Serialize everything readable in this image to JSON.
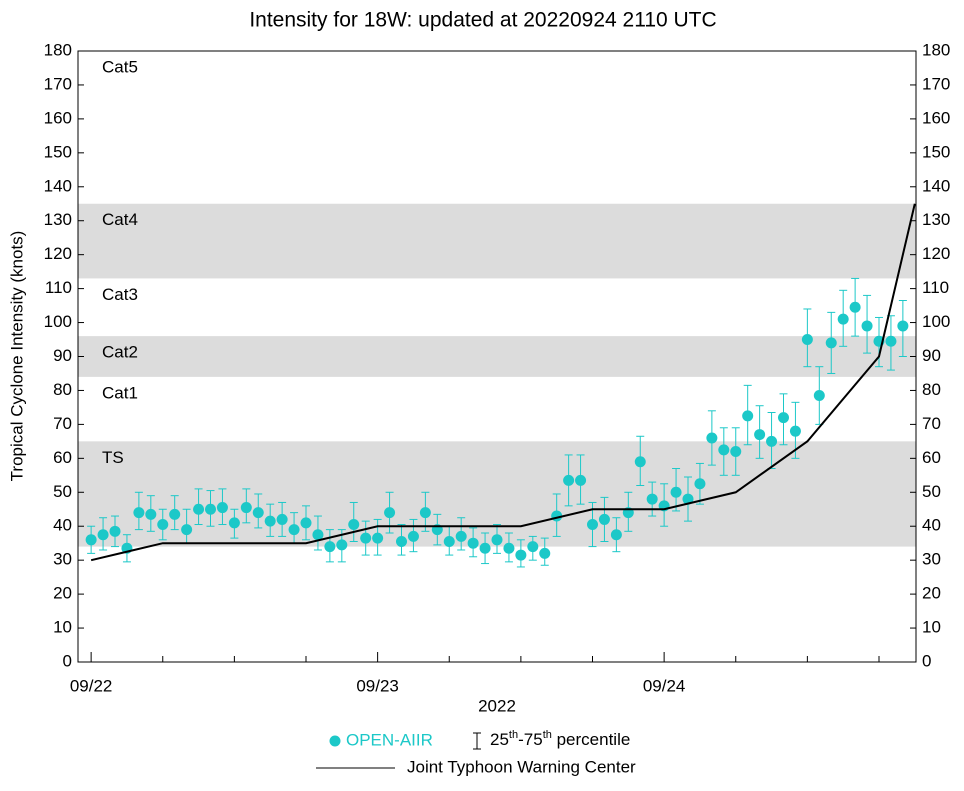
{
  "chart_data": {
    "type": "scatter",
    "title": "Intensity for 18W: updated at 20220924 2110 UTC",
    "y_label": "Tropical Cyclone Intensity (knots)",
    "x_label": "2022",
    "xlim": [
      -1.1,
      69.1
    ],
    "xticks": [
      {
        "value": 0,
        "label": "09/22"
      },
      {
        "value": 24,
        "label": "09/23"
      },
      {
        "value": 48,
        "label": "09/24"
      }
    ],
    "xminor_ticks": [
      6,
      12,
      18,
      30,
      36,
      42,
      54,
      60,
      66
    ],
    "ylim": [
      0,
      180
    ],
    "yticks": [
      0,
      10,
      20,
      30,
      40,
      50,
      60,
      70,
      80,
      90,
      100,
      110,
      120,
      130,
      140,
      150,
      160,
      170,
      180
    ],
    "bands": [
      {
        "label": "TS",
        "range": [
          34,
          65
        ],
        "shaded": true
      },
      {
        "label": "Cat1",
        "range": [
          65,
          84
        ],
        "shaded": false
      },
      {
        "label": "Cat2",
        "range": [
          84,
          96
        ],
        "shaded": true
      },
      {
        "label": "Cat3",
        "range": [
          96,
          113
        ],
        "shaded": false
      },
      {
        "label": "Cat4",
        "range": [
          113,
          135
        ],
        "shaded": true
      },
      {
        "label": "Cat5",
        "range": [
          135,
          180
        ],
        "shaded": false
      }
    ],
    "percentile_legend": {
      "parts": [
        "25",
        "th",
        "-75",
        "th",
        " percentile"
      ]
    },
    "series": [
      {
        "name": "OPEN-AIIR",
        "type": "scatter",
        "color": "#1cc8c8",
        "x": [
          0,
          1,
          2,
          3,
          4,
          5,
          6,
          7,
          8,
          9,
          10,
          11,
          12,
          13,
          14,
          15,
          16,
          17,
          18,
          19,
          20,
          21,
          22,
          23,
          24,
          25,
          26,
          27,
          28,
          29,
          30,
          31,
          32,
          33,
          34,
          35,
          36,
          37,
          38,
          39,
          40,
          41,
          42,
          43,
          44,
          45,
          46,
          47,
          48,
          49,
          50,
          51,
          52,
          53,
          54,
          55,
          56,
          57,
          58,
          59,
          60,
          61,
          62,
          63,
          64,
          65,
          66,
          67,
          68
        ],
        "values": [
          36,
          37.5,
          38.5,
          33.5,
          44,
          43.5,
          40.5,
          43.5,
          39,
          45,
          45,
          45.5,
          41,
          45.5,
          44,
          41.5,
          42,
          39,
          41,
          37.5,
          34,
          34.5,
          40.5,
          36.5,
          36.5,
          44,
          35.5,
          37,
          44,
          39,
          35.5,
          37,
          35,
          33.5,
          36,
          33.5,
          31.5,
          34,
          32,
          43,
          53.5,
          53.5,
          40.5,
          42,
          37.5,
          44,
          59,
          48,
          46,
          50,
          48,
          52.5,
          66,
          62.5,
          62,
          72.5,
          67,
          65,
          72,
          68,
          95,
          78.5,
          94,
          101,
          104.5,
          99,
          94.5,
          94.5,
          99
        ],
        "low": [
          32,
          33,
          34,
          29.5,
          39,
          38.5,
          36,
          39,
          35,
          40.5,
          40,
          40.5,
          36.5,
          41,
          39.5,
          37,
          37,
          35,
          36,
          33,
          29.5,
          29.5,
          35.5,
          31.5,
          31.5,
          38,
          31.5,
          32.5,
          38.5,
          34.5,
          31.5,
          33,
          31,
          29,
          32,
          29.5,
          28,
          30,
          28.5,
          37,
          46,
          46.5,
          34,
          35.5,
          32.5,
          38.5,
          52,
          43,
          40,
          44.5,
          41.5,
          46.5,
          58,
          55,
          55,
          64,
          60,
          57,
          64,
          60,
          87,
          70,
          85,
          93,
          96,
          91,
          87,
          86,
          90
        ],
        "high": [
          40,
          42.5,
          43,
          37.5,
          50,
          49,
          45,
          49,
          45,
          51,
          50.5,
          51,
          45,
          51,
          49.5,
          46.5,
          47,
          44,
          46,
          43,
          39,
          39,
          47,
          41.5,
          42,
          50,
          40.5,
          42,
          50,
          43.5,
          40,
          42.5,
          39.5,
          38,
          40.5,
          38,
          36,
          37,
          36.5,
          49.5,
          61,
          61,
          47,
          48.5,
          42.5,
          50,
          66.5,
          53,
          52.5,
          57,
          54.5,
          58.5,
          74,
          69,
          69,
          81.5,
          75.5,
          73.5,
          79,
          76.5,
          104,
          87,
          103,
          109.5,
          113,
          108,
          101.5,
          102,
          106.5
        ]
      },
      {
        "name": "Joint Typhoon Warning Center",
        "type": "line",
        "color": "#000000",
        "x": [
          0,
          6,
          12,
          18,
          24,
          30,
          36,
          42,
          48,
          54,
          60,
          66,
          69
        ],
        "values": [
          30,
          35,
          35,
          35,
          40,
          40,
          40,
          45,
          45,
          50,
          65,
          90,
          135
        ]
      }
    ]
  }
}
